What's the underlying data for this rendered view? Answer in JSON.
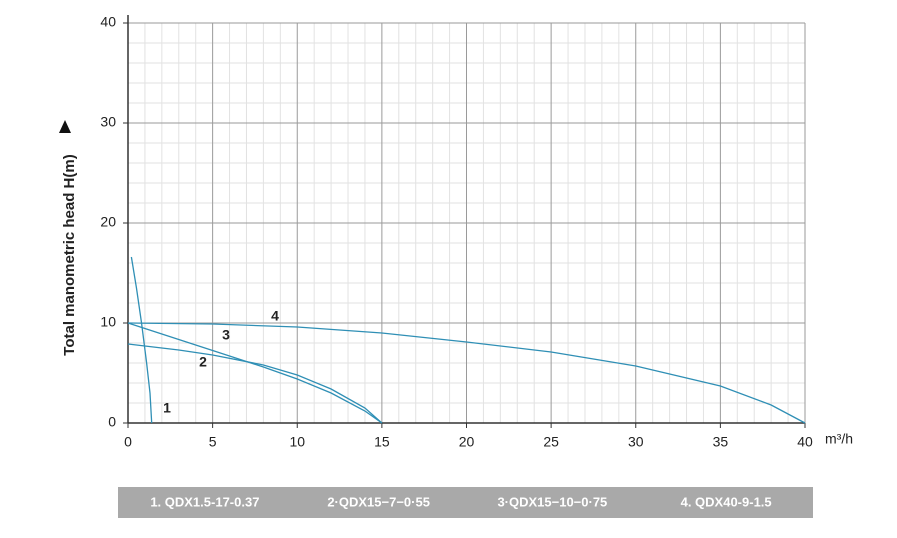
{
  "chart_data": {
    "type": "line",
    "y_label": "Total manometric head H(m)",
    "x_unit": "m³/h",
    "xlim": [
      0,
      40
    ],
    "xticks": [
      0,
      5,
      10,
      15,
      20,
      25,
      30,
      35,
      40
    ],
    "ylim": [
      0,
      40
    ],
    "yticks": [
      0,
      10,
      20,
      30,
      40
    ],
    "grid": true,
    "series": [
      {
        "name": "1. QDX1.5-17-0.37",
        "color": "#2f8fb5",
        "x": [
          0.2,
          0.5,
          0.8,
          1.1,
          1.3,
          1.4
        ],
        "values": [
          16.6,
          13.5,
          10,
          6,
          3,
          0
        ]
      },
      {
        "name": "2·QDX15−7−0·55",
        "color": "#2f8fb5",
        "x": [
          0,
          3,
          5,
          8,
          10,
          12,
          14,
          15
        ],
        "values": [
          7.9,
          7.3,
          6.8,
          5.8,
          4.8,
          3.4,
          1.5,
          0
        ]
      },
      {
        "name": "3·QDX15−10−0·75",
        "color": "#2f8fb5",
        "x": [
          0,
          2,
          4,
          6,
          8,
          10,
          12,
          14,
          15
        ],
        "values": [
          10,
          8.9,
          7.8,
          6.7,
          5.6,
          4.4,
          3,
          1.2,
          0
        ]
      },
      {
        "name": "4. QDX40-9-1.5",
        "color": "#2f8fb5",
        "x": [
          0,
          5,
          10,
          15,
          20,
          25,
          30,
          35,
          38,
          40
        ],
        "values": [
          10,
          9.9,
          9.6,
          9,
          8.1,
          7.1,
          5.7,
          3.7,
          1.8,
          0
        ]
      }
    ],
    "annotations": [
      "1",
      "2",
      "3",
      "4"
    ]
  }
}
